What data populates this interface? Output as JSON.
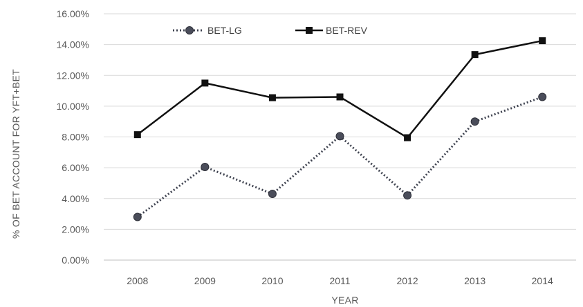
{
  "chart_data": {
    "type": "line",
    "title": "",
    "xlabel": "YEAR",
    "ylabel": "% OF BET ACCOUNT FOR YFT+BET",
    "categories": [
      "2008",
      "2009",
      "2010",
      "2011",
      "2012",
      "2013",
      "2014"
    ],
    "y_ticks": [
      "0.00%",
      "2.00%",
      "4.00%",
      "6.00%",
      "8.00%",
      "10.00%",
      "12.00%",
      "14.00%",
      "16.00%"
    ],
    "ylim": [
      0,
      16
    ],
    "y_unit": "%",
    "grid": true,
    "legend_position": "top-left",
    "series": [
      {
        "name": "BET-LG",
        "style": "dotted",
        "marker": "circle",
        "color": "#3f4350",
        "values": [
          2.8,
          6.05,
          4.3,
          8.05,
          4.2,
          9.0,
          10.6
        ]
      },
      {
        "name": "BET-REV",
        "style": "solid",
        "marker": "square",
        "color": "#111111",
        "values": [
          8.15,
          11.5,
          10.55,
          10.6,
          7.95,
          13.35,
          14.25
        ]
      }
    ]
  }
}
